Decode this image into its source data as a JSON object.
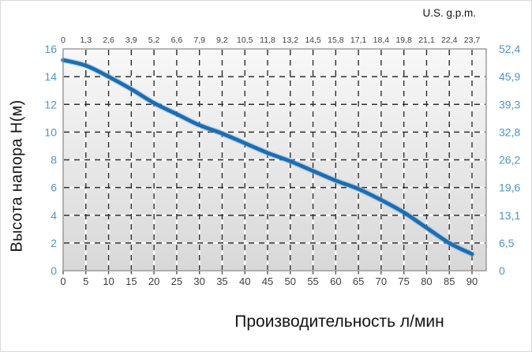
{
  "chart_data": {
    "type": "line",
    "title": "",
    "x_bottom": {
      "label": "Производительность л/мин",
      "ticks": [
        "0",
        "5",
        "10",
        "15",
        "20",
        "25",
        "30",
        "35",
        "40",
        "45",
        "50",
        "55",
        "60",
        "65",
        "70",
        "75",
        "80",
        "85",
        "90"
      ]
    },
    "x_top": {
      "label": "U.S. g.p.m.",
      "ticks": [
        "0",
        "1,3",
        "2,6",
        "3,9",
        "5,2",
        "6,6",
        "7,9",
        "9,2",
        "10,5",
        "11,8",
        "13,2",
        "14,5",
        "15,8",
        "17,1",
        "18,4",
        "19,8",
        "21,1",
        "22,4",
        "23,7"
      ]
    },
    "y_left": {
      "label": "Высота напора  Н(м)",
      "ticks": [
        "16",
        "14",
        "12",
        "10",
        "8",
        "6",
        "4",
        "2",
        "0"
      ]
    },
    "y_right": {
      "ticks": [
        "52,4",
        "45,9",
        "39,3",
        "32,8",
        "26,2",
        "19,6",
        "13,1",
        "6,5",
        "0"
      ]
    },
    "series": [
      {
        "name": "pump-head-curve",
        "x": [
          0,
          5,
          10,
          15,
          20,
          25,
          30,
          35,
          40,
          45,
          50,
          55,
          60,
          65,
          70,
          75,
          80,
          85,
          90
        ],
        "y": [
          15.2,
          14.8,
          14.0,
          13.1,
          12.1,
          11.3,
          10.5,
          9.9,
          9.2,
          8.5,
          7.9,
          7.2,
          6.5,
          5.9,
          5.1,
          4.2,
          3.1,
          2.0,
          1.2
        ]
      }
    ],
    "xlim": [
      0,
      93.1
    ],
    "ylim": [
      0,
      16
    ],
    "grid": {
      "x_step": 5,
      "y_step": 2,
      "style": "black-dashes-over-white-lines"
    },
    "legend": "none"
  },
  "colors": {
    "curve": "#1c6db2",
    "curve_halo": "#7fb2dc",
    "tick_blue": "#4e96cd",
    "tick_dark": "#3f3f3f",
    "plot_bg_top": "#f8f8f8",
    "plot_bg_bottom": "#d8d8d8",
    "grid_white": "#ffffff",
    "grid_dash": "#2b2b2b",
    "border": "#8f8f8f",
    "tick_mark": "#444444"
  }
}
